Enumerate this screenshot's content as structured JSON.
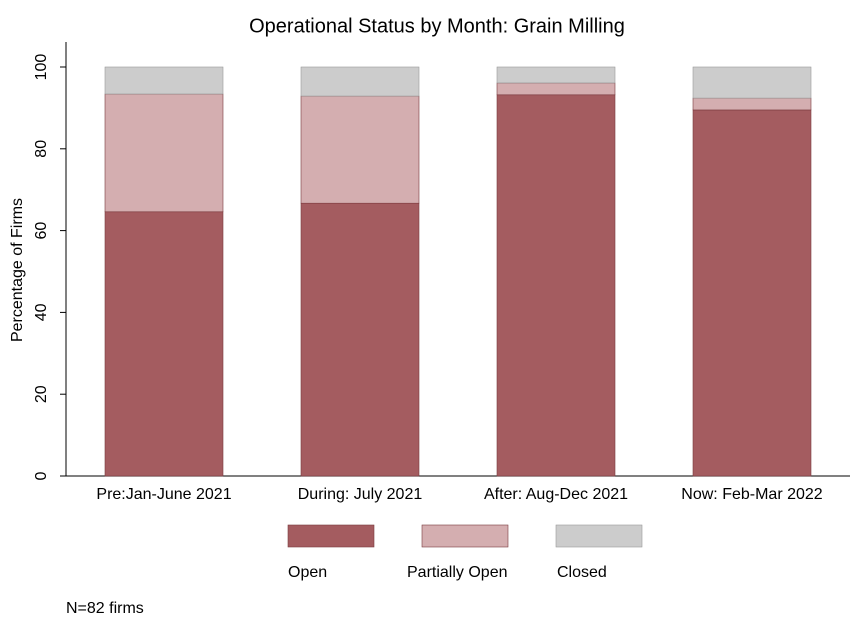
{
  "chart_data": {
    "type": "stacked_bar",
    "title": "Operational Status by Month: Grain Milling",
    "y_label": "Percentage of Firms",
    "note": "N=82 firms",
    "categories": [
      "Pre:Jan-June 2021",
      "During: July 2021",
      "After: Aug-Dec 2021",
      "Now: Feb-Mar 2022"
    ],
    "series": [
      {
        "name": "Open",
        "color": "#a45c60",
        "values": [
          64.6,
          66.7,
          93.2,
          89.5
        ]
      },
      {
        "name": "Partially Open",
        "color": "#d4aeb0",
        "values": [
          28.8,
          26.2,
          2.9,
          2.9
        ]
      },
      {
        "name": "Closed",
        "color": "#cccccc",
        "values": [
          6.6,
          7.1,
          3.9,
          7.6
        ]
      }
    ],
    "ylim": [
      0,
      100
    ],
    "yticks": [
      0,
      20,
      40,
      60,
      80,
      100
    ],
    "grid": false
  }
}
